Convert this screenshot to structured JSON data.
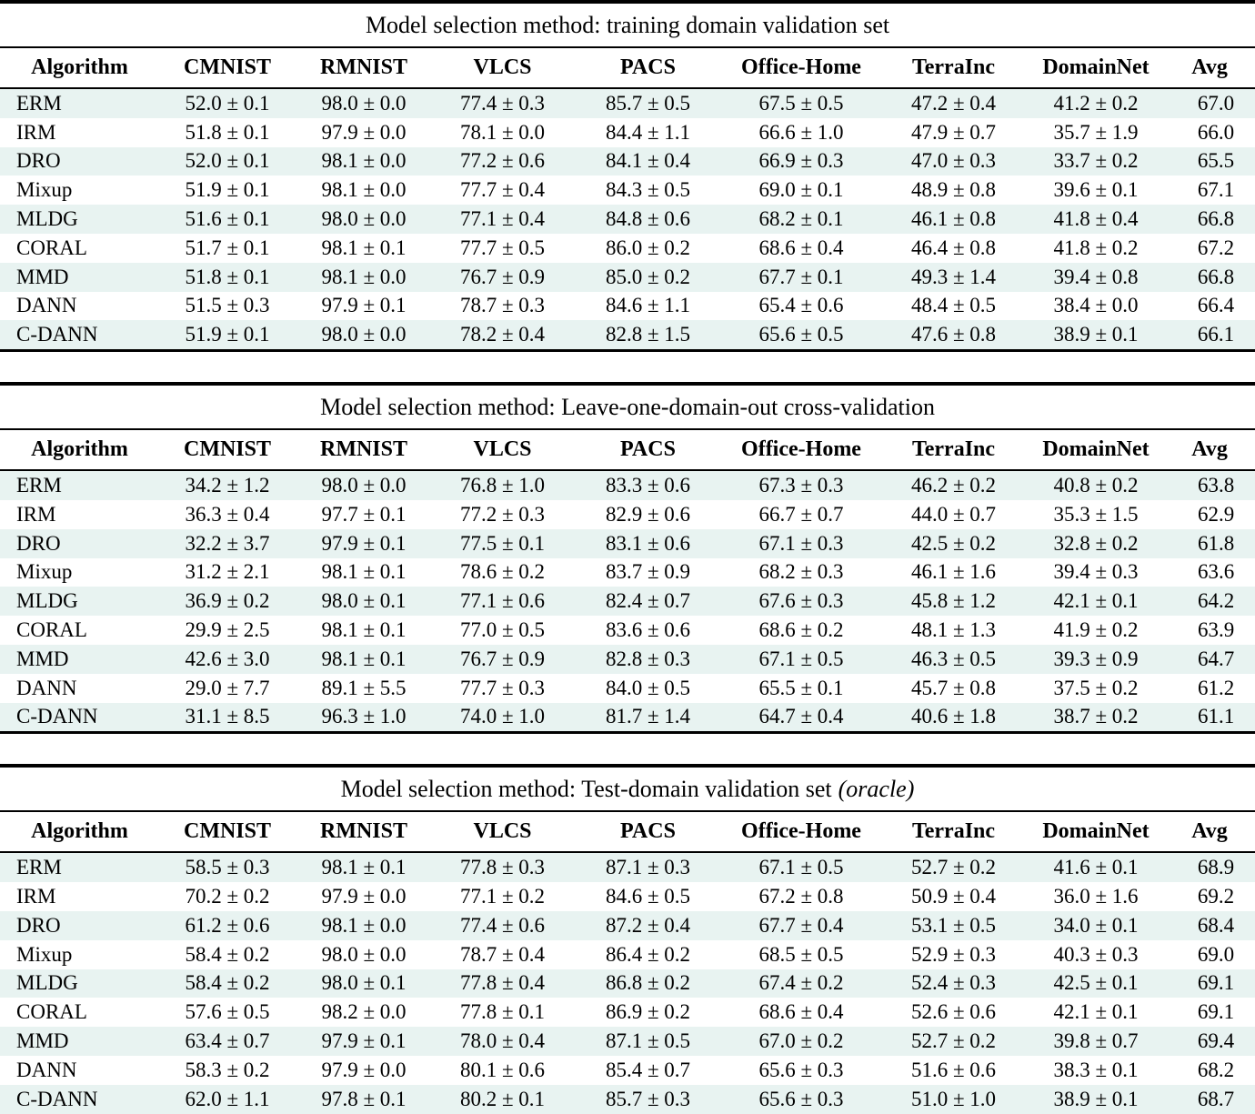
{
  "colors": {
    "stripe_row": "#e8f3f1",
    "rule": "#000000",
    "text": "#000000",
    "background": "#ffffff"
  },
  "columns": [
    "Algorithm",
    "CMNIST",
    "RMNIST",
    "VLCS",
    "PACS",
    "Office-Home",
    "TerraInc",
    "DomainNet",
    "Avg"
  ],
  "tables": [
    {
      "title": "Model selection method: training domain validation set",
      "title_suffix_italic": "",
      "rows": [
        [
          "ERM",
          "52.0 ± 0.1",
          "98.0 ± 0.0",
          "77.4 ± 0.3",
          "85.7 ± 0.5",
          "67.5 ± 0.5",
          "47.2 ± 0.4",
          "41.2 ± 0.2",
          "67.0"
        ],
        [
          "IRM",
          "51.8 ± 0.1",
          "97.9 ± 0.0",
          "78.1 ± 0.0",
          "84.4 ± 1.1",
          "66.6 ± 1.0",
          "47.9 ± 0.7",
          "35.7 ± 1.9",
          "66.0"
        ],
        [
          "DRO",
          "52.0 ± 0.1",
          "98.1 ± 0.0",
          "77.2 ± 0.6",
          "84.1 ± 0.4",
          "66.9 ± 0.3",
          "47.0 ± 0.3",
          "33.7 ± 0.2",
          "65.5"
        ],
        [
          "Mixup",
          "51.9 ± 0.1",
          "98.1 ± 0.0",
          "77.7 ± 0.4",
          "84.3 ± 0.5",
          "69.0 ± 0.1",
          "48.9 ± 0.8",
          "39.6 ± 0.1",
          "67.1"
        ],
        [
          "MLDG",
          "51.6 ± 0.1",
          "98.0 ± 0.0",
          "77.1 ± 0.4",
          "84.8 ± 0.6",
          "68.2 ± 0.1",
          "46.1 ± 0.8",
          "41.8 ± 0.4",
          "66.8"
        ],
        [
          "CORAL",
          "51.7 ± 0.1",
          "98.1 ± 0.1",
          "77.7 ± 0.5",
          "86.0 ± 0.2",
          "68.6 ± 0.4",
          "46.4 ± 0.8",
          "41.8 ± 0.2",
          "67.2"
        ],
        [
          "MMD",
          "51.8 ± 0.1",
          "98.1 ± 0.0",
          "76.7 ± 0.9",
          "85.0 ± 0.2",
          "67.7 ± 0.1",
          "49.3 ± 1.4",
          "39.4 ± 0.8",
          "66.8"
        ],
        [
          "DANN",
          "51.5 ± 0.3",
          "97.9 ± 0.1",
          "78.7 ± 0.3",
          "84.6 ± 1.1",
          "65.4 ± 0.6",
          "48.4 ± 0.5",
          "38.4 ± 0.0",
          "66.4"
        ],
        [
          "C-DANN",
          "51.9 ± 0.1",
          "98.0 ± 0.0",
          "78.2 ± 0.4",
          "82.8 ± 1.5",
          "65.6 ± 0.5",
          "47.6 ± 0.8",
          "38.9 ± 0.1",
          "66.1"
        ]
      ]
    },
    {
      "title": "Model selection method: Leave-one-domain-out cross-validation",
      "title_suffix_italic": "",
      "rows": [
        [
          "ERM",
          "34.2 ± 1.2",
          "98.0 ± 0.0",
          "76.8 ± 1.0",
          "83.3 ± 0.6",
          "67.3 ± 0.3",
          "46.2 ± 0.2",
          "40.8 ± 0.2",
          "63.8"
        ],
        [
          "IRM",
          "36.3 ± 0.4",
          "97.7 ± 0.1",
          "77.2 ± 0.3",
          "82.9 ± 0.6",
          "66.7 ± 0.7",
          "44.0 ± 0.7",
          "35.3 ± 1.5",
          "62.9"
        ],
        [
          "DRO",
          "32.2 ± 3.7",
          "97.9 ± 0.1",
          "77.5 ± 0.1",
          "83.1 ± 0.6",
          "67.1 ± 0.3",
          "42.5 ± 0.2",
          "32.8 ± 0.2",
          "61.8"
        ],
        [
          "Mixup",
          "31.2 ± 2.1",
          "98.1 ± 0.1",
          "78.6 ± 0.2",
          "83.7 ± 0.9",
          "68.2 ± 0.3",
          "46.1 ± 1.6",
          "39.4 ± 0.3",
          "63.6"
        ],
        [
          "MLDG",
          "36.9 ± 0.2",
          "98.0 ± 0.1",
          "77.1 ± 0.6",
          "82.4 ± 0.7",
          "67.6 ± 0.3",
          "45.8 ± 1.2",
          "42.1 ± 0.1",
          "64.2"
        ],
        [
          "CORAL",
          "29.9 ± 2.5",
          "98.1 ± 0.1",
          "77.0 ± 0.5",
          "83.6 ± 0.6",
          "68.6 ± 0.2",
          "48.1 ± 1.3",
          "41.9 ± 0.2",
          "63.9"
        ],
        [
          "MMD",
          "42.6 ± 3.0",
          "98.1 ± 0.1",
          "76.7 ± 0.9",
          "82.8 ± 0.3",
          "67.1 ± 0.5",
          "46.3 ± 0.5",
          "39.3 ± 0.9",
          "64.7"
        ],
        [
          "DANN",
          "29.0 ± 7.7",
          "89.1 ± 5.5",
          "77.7 ± 0.3",
          "84.0 ± 0.5",
          "65.5 ± 0.1",
          "45.7 ± 0.8",
          "37.5 ± 0.2",
          "61.2"
        ],
        [
          "C-DANN",
          "31.1 ± 8.5",
          "96.3 ± 1.0",
          "74.0 ± 1.0",
          "81.7 ± 1.4",
          "64.7 ± 0.4",
          "40.6 ± 1.8",
          "38.7 ± 0.2",
          "61.1"
        ]
      ]
    },
    {
      "title": "Model selection method: Test-domain validation set",
      "title_suffix_italic": "(oracle)",
      "rows": [
        [
          "ERM",
          "58.5 ± 0.3",
          "98.1 ± 0.1",
          "77.8 ± 0.3",
          "87.1 ± 0.3",
          "67.1 ± 0.5",
          "52.7 ± 0.2",
          "41.6 ± 0.1",
          "68.9"
        ],
        [
          "IRM",
          "70.2 ± 0.2",
          "97.9 ± 0.0",
          "77.1 ± 0.2",
          "84.6 ± 0.5",
          "67.2 ± 0.8",
          "50.9 ± 0.4",
          "36.0 ± 1.6",
          "69.2"
        ],
        [
          "DRO",
          "61.2 ± 0.6",
          "98.1 ± 0.0",
          "77.4 ± 0.6",
          "87.2 ± 0.4",
          "67.7 ± 0.4",
          "53.1 ± 0.5",
          "34.0 ± 0.1",
          "68.4"
        ],
        [
          "Mixup",
          "58.4 ± 0.2",
          "98.0 ± 0.0",
          "78.7 ± 0.4",
          "86.4 ± 0.2",
          "68.5 ± 0.5",
          "52.9 ± 0.3",
          "40.3 ± 0.3",
          "69.0"
        ],
        [
          "MLDG",
          "58.4 ± 0.2",
          "98.0 ± 0.1",
          "77.8 ± 0.4",
          "86.8 ± 0.2",
          "67.4 ± 0.2",
          "52.4 ± 0.3",
          "42.5 ± 0.1",
          "69.1"
        ],
        [
          "CORAL",
          "57.6 ± 0.5",
          "98.2 ± 0.0",
          "77.8 ± 0.1",
          "86.9 ± 0.2",
          "68.6 ± 0.4",
          "52.6 ± 0.6",
          "42.1 ± 0.1",
          "69.1"
        ],
        [
          "MMD",
          "63.4 ± 0.7",
          "97.9 ± 0.1",
          "78.0 ± 0.4",
          "87.1 ± 0.5",
          "67.0 ± 0.2",
          "52.7 ± 0.2",
          "39.8 ± 0.7",
          "69.4"
        ],
        [
          "DANN",
          "58.3 ± 0.2",
          "97.9 ± 0.0",
          "80.1 ± 0.6",
          "85.4 ± 0.7",
          "65.6 ± 0.3",
          "51.6 ± 0.6",
          "38.3 ± 0.1",
          "68.2"
        ],
        [
          "C-DANN",
          "62.0 ± 1.1",
          "97.8 ± 0.1",
          "80.2 ± 0.1",
          "85.7 ± 0.3",
          "65.6 ± 0.3",
          "51.0 ± 1.0",
          "38.9 ± 0.1",
          "68.7"
        ]
      ]
    }
  ]
}
